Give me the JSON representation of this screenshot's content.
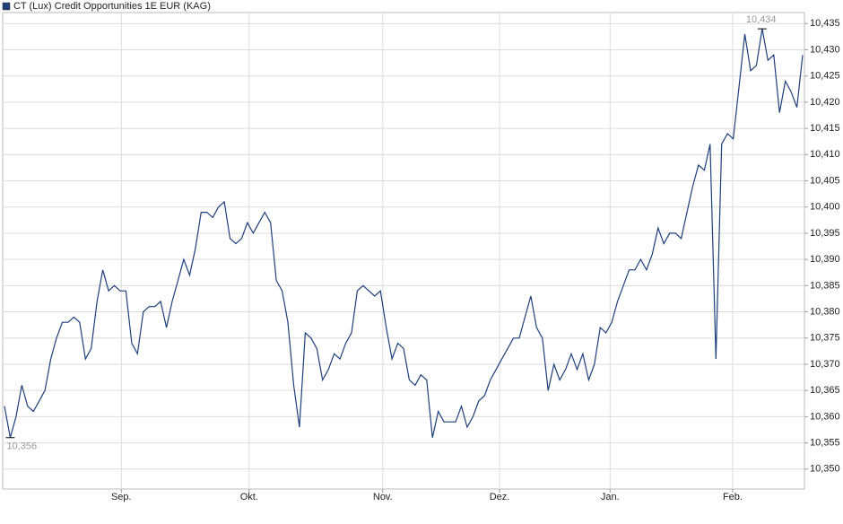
{
  "chart_data": {
    "type": "line",
    "series": [
      {
        "name": "CT (Lux) Credit Opportunities 1E EUR (KAG)",
        "color": "#1d3f7c",
        "values": [
          10.362,
          10.356,
          10.36,
          10.366,
          10.362,
          10.361,
          10.363,
          10.365,
          10.371,
          10.375,
          10.378,
          10.378,
          10.379,
          10.378,
          10.371,
          10.373,
          10.382,
          10.388,
          10.384,
          10.385,
          10.384,
          10.384,
          10.374,
          10.372,
          10.38,
          10.381,
          10.381,
          10.382,
          10.377,
          10.382,
          10.386,
          10.39,
          10.387,
          10.392,
          10.399,
          10.399,
          10.398,
          10.4,
          10.401,
          10.394,
          10.393,
          10.394,
          10.397,
          10.395,
          10.397,
          10.399,
          10.397,
          10.386,
          10.384,
          10.378,
          10.366,
          10.358,
          10.376,
          10.375,
          10.373,
          10.367,
          10.369,
          10.372,
          10.371,
          10.374,
          10.376,
          10.384,
          10.385,
          10.384,
          10.383,
          10.384,
          10.377,
          10.371,
          10.374,
          10.373,
          10.367,
          10.366,
          10.368,
          10.367,
          10.356,
          10.361,
          10.359,
          10.359,
          10.359,
          10.362,
          10.358,
          10.36,
          10.363,
          10.364,
          10.367,
          10.369,
          10.371,
          10.373,
          10.375,
          10.375,
          10.379,
          10.383,
          10.377,
          10.375,
          10.365,
          10.37,
          10.367,
          10.369,
          10.372,
          10.369,
          10.372,
          10.367,
          10.37,
          10.377,
          10.376,
          10.378,
          10.382,
          10.385,
          10.388,
          10.388,
          10.39,
          10.388,
          10.391,
          10.396,
          10.393,
          10.395,
          10.395,
          10.394,
          10.399,
          10.404,
          10.408,
          10.407,
          10.412,
          10.371,
          10.412,
          10.414,
          10.413,
          10.423,
          10.433,
          10.426,
          10.427,
          10.434,
          10.428,
          10.429,
          10.418,
          10.424,
          10.422,
          10.419,
          10.429
        ]
      }
    ],
    "xlim": [
      0,
      138
    ],
    "xticks": [
      {
        "value": 20.2,
        "label": "Sep."
      },
      {
        "value": 42.3,
        "label": "Okt."
      },
      {
        "value": 65.4,
        "label": "Nov."
      },
      {
        "value": 85.6,
        "label": "Dez."
      },
      {
        "value": 104.7,
        "label": "Jan."
      },
      {
        "value": 125.9,
        "label": "Feb."
      }
    ],
    "ylim": [
      10.3462,
      10.4371
    ],
    "yticks": [
      {
        "value": 10.35,
        "label": "10,350"
      },
      {
        "value": 10.355,
        "label": "10,355"
      },
      {
        "value": 10.36,
        "label": "10,360"
      },
      {
        "value": 10.365,
        "label": "10,365"
      },
      {
        "value": 10.37,
        "label": "10,370"
      },
      {
        "value": 10.375,
        "label": "10,375"
      },
      {
        "value": 10.38,
        "label": "10,380"
      },
      {
        "value": 10.385,
        "label": "10,385"
      },
      {
        "value": 10.39,
        "label": "10,390"
      },
      {
        "value": 10.395,
        "label": "10,395"
      },
      {
        "value": 10.4,
        "label": "10,400"
      },
      {
        "value": 10.405,
        "label": "10,405"
      },
      {
        "value": 10.41,
        "label": "10,410"
      },
      {
        "value": 10.415,
        "label": "10,415"
      },
      {
        "value": 10.42,
        "label": "10,420"
      },
      {
        "value": 10.425,
        "label": "10,425"
      },
      {
        "value": 10.43,
        "label": "10,430"
      },
      {
        "value": 10.435,
        "label": "10,435"
      }
    ],
    "annotations": [
      {
        "text": "10,356",
        "x": 1,
        "y": 10.356,
        "position": "below"
      },
      {
        "text": "10,434",
        "x": 131,
        "y": 10.434,
        "position": "above"
      }
    ],
    "grid": true
  }
}
